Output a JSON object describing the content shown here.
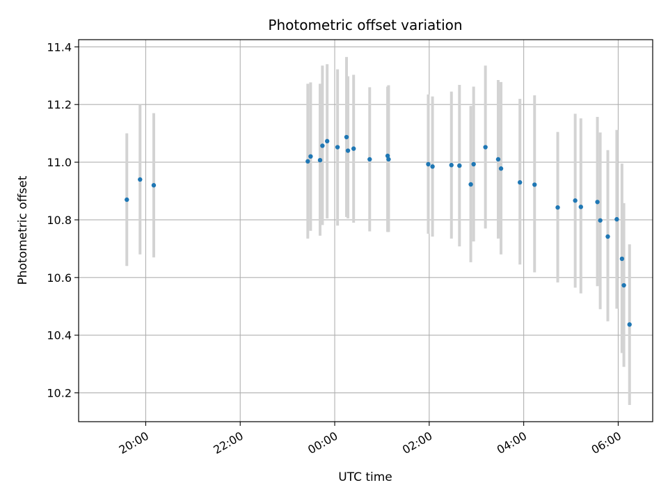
{
  "chart_data": {
    "type": "scatter",
    "title": "Photometric offset variation",
    "xlabel": "UTC time",
    "ylabel": "Photometric offset",
    "grid": true,
    "x_unit": "hours",
    "xlim": [
      18.58,
      30.73
    ],
    "ylim": [
      10.1,
      11.425
    ],
    "x_ticks": [
      {
        "value": 20,
        "label": "20:00"
      },
      {
        "value": 22,
        "label": "22:00"
      },
      {
        "value": 24,
        "label": "00:00"
      },
      {
        "value": 26,
        "label": "02:00"
      },
      {
        "value": 28,
        "label": "04:00"
      },
      {
        "value": 30,
        "label": "06:00"
      }
    ],
    "y_ticks": [
      {
        "value": 10.2,
        "label": "10.2"
      },
      {
        "value": 10.4,
        "label": "10.4"
      },
      {
        "value": 10.6,
        "label": "10.6"
      },
      {
        "value": 10.8,
        "label": "10.8"
      },
      {
        "value": 11.0,
        "label": "11.0"
      },
      {
        "value": 11.2,
        "label": "11.2"
      },
      {
        "value": 11.4,
        "label": "11.4"
      }
    ],
    "colors": {
      "point": "#1f77b4",
      "errorbar": "#d3d3d3",
      "grid": "#b0b0b0"
    },
    "points": [
      {
        "x": 19.6,
        "y": 10.87,
        "lo": 10.64,
        "hi": 11.1
      },
      {
        "x": 19.88,
        "y": 10.94,
        "lo": 10.68,
        "hi": 11.2
      },
      {
        "x": 20.17,
        "y": 10.92,
        "lo": 10.67,
        "hi": 11.17
      },
      {
        "x": 23.43,
        "y": 11.003,
        "lo": 10.735,
        "hi": 11.272
      },
      {
        "x": 23.49,
        "y": 11.02,
        "lo": 10.762,
        "hi": 11.277
      },
      {
        "x": 23.84,
        "y": 11.073,
        "lo": 10.805,
        "hi": 11.34
      },
      {
        "x": 23.69,
        "y": 11.007,
        "lo": 10.745,
        "hi": 11.272
      },
      {
        "x": 23.74,
        "y": 11.057,
        "lo": 10.782,
        "hi": 11.335
      },
      {
        "x": 24.06,
        "y": 11.052,
        "lo": 10.78,
        "hi": 11.322
      },
      {
        "x": 24.25,
        "y": 11.087,
        "lo": 10.81,
        "hi": 11.365
      },
      {
        "x": 24.28,
        "y": 11.04,
        "lo": 10.805,
        "hi": 11.298
      },
      {
        "x": 24.4,
        "y": 11.047,
        "lo": 10.79,
        "hi": 11.303
      },
      {
        "x": 24.74,
        "y": 11.01,
        "lo": 10.76,
        "hi": 11.26
      },
      {
        "x": 25.12,
        "y": 11.022,
        "lo": 10.758,
        "hi": 11.262
      },
      {
        "x": 25.14,
        "y": 11.01,
        "lo": 10.758,
        "hi": 11.267
      },
      {
        "x": 25.98,
        "y": 10.993,
        "lo": 10.752,
        "hi": 11.235
      },
      {
        "x": 26.07,
        "y": 10.985,
        "lo": 10.742,
        "hi": 11.228
      },
      {
        "x": 26.47,
        "y": 10.99,
        "lo": 10.735,
        "hi": 11.245
      },
      {
        "x": 26.64,
        "y": 10.988,
        "lo": 10.708,
        "hi": 11.268
      },
      {
        "x": 26.88,
        "y": 10.923,
        "lo": 10.653,
        "hi": 11.195
      },
      {
        "x": 26.94,
        "y": 10.993,
        "lo": 10.725,
        "hi": 11.262
      },
      {
        "x": 27.19,
        "y": 11.052,
        "lo": 10.77,
        "hi": 11.335
      },
      {
        "x": 27.46,
        "y": 11.01,
        "lo": 10.735,
        "hi": 11.285
      },
      {
        "x": 27.52,
        "y": 10.978,
        "lo": 10.68,
        "hi": 11.278
      },
      {
        "x": 27.92,
        "y": 10.93,
        "lo": 10.645,
        "hi": 11.22
      },
      {
        "x": 28.23,
        "y": 10.922,
        "lo": 10.618,
        "hi": 11.232
      },
      {
        "x": 28.72,
        "y": 10.843,
        "lo": 10.583,
        "hi": 11.105
      },
      {
        "x": 29.09,
        "y": 10.867,
        "lo": 10.565,
        "hi": 11.168
      },
      {
        "x": 29.21,
        "y": 10.845,
        "lo": 10.545,
        "hi": 11.152
      },
      {
        "x": 29.56,
        "y": 10.862,
        "lo": 10.57,
        "hi": 11.157
      },
      {
        "x": 29.62,
        "y": 10.798,
        "lo": 10.49,
        "hi": 11.103
      },
      {
        "x": 29.78,
        "y": 10.742,
        "lo": 10.448,
        "hi": 11.042
      },
      {
        "x": 29.97,
        "y": 10.802,
        "lo": 10.492,
        "hi": 11.112
      },
      {
        "x": 30.08,
        "y": 10.665,
        "lo": 10.338,
        "hi": 10.995
      },
      {
        "x": 30.12,
        "y": 10.573,
        "lo": 10.29,
        "hi": 10.858
      },
      {
        "x": 30.24,
        "y": 10.437,
        "lo": 10.158,
        "hi": 10.715
      }
    ]
  }
}
